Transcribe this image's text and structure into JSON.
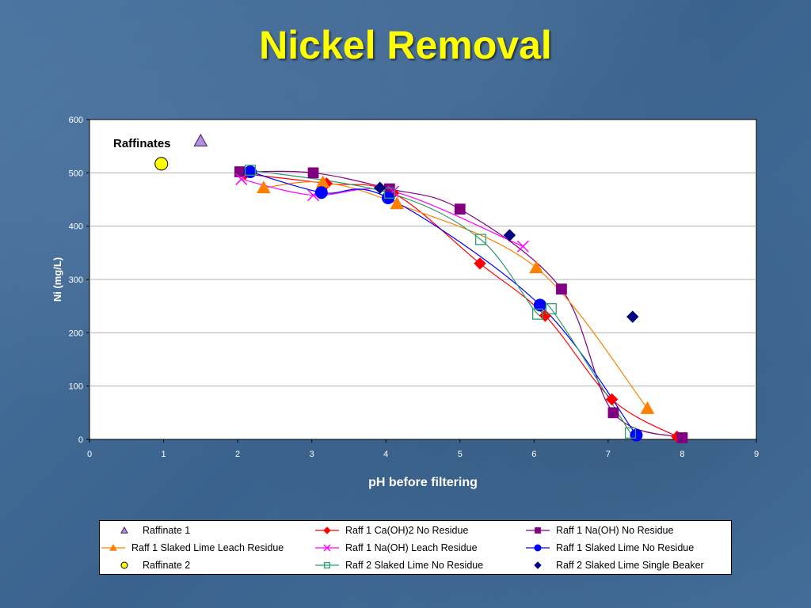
{
  "slide": {
    "title": "Nickel Removal"
  },
  "chart_data": {
    "type": "scatter",
    "xlabel": "pH before filtering",
    "ylabel": "Ni (mg/L)",
    "xlim": [
      0,
      9
    ],
    "ylim": [
      0,
      600
    ],
    "x_ticks": [
      "0",
      "1",
      "2",
      "3",
      "4",
      "5",
      "6",
      "7",
      "8",
      "9"
    ],
    "y_ticks": [
      "0",
      "100",
      "200",
      "300",
      "400",
      "500",
      "600"
    ],
    "grid": "horizontal",
    "legend_position": "bottom",
    "annotations": [
      {
        "text": "Raffinates"
      }
    ],
    "series": [
      {
        "name": "Raffinate 1",
        "marker": "triangle",
        "color": "#b48ee0",
        "stroke": "#3a1a66",
        "line": false,
        "points": [
          [
            1.5,
            560
          ]
        ]
      },
      {
        "name": "Raff 1 Ca(OH)2 No Residue",
        "marker": "diamond",
        "color": "#ff0000",
        "line": true,
        "points": [
          [
            2.1,
            498
          ],
          [
            3.2,
            480
          ],
          [
            4.1,
            462
          ],
          [
            5.27,
            330
          ],
          [
            6.15,
            232
          ],
          [
            7.05,
            75
          ],
          [
            7.93,
            5
          ]
        ]
      },
      {
        "name": "Raff 1 Na(OH) No Residue",
        "marker": "square",
        "color": "#800080",
        "line": true,
        "points": [
          [
            2.03,
            502
          ],
          [
            3.02,
            500
          ],
          [
            4.05,
            470
          ],
          [
            5.0,
            432
          ],
          [
            6.37,
            282
          ],
          [
            7.07,
            50
          ],
          [
            8.0,
            3
          ]
        ]
      },
      {
        "name": "Raff 1 Slaked Lime Leach Residue",
        "marker": "triangle",
        "color": "#ff7f00",
        "line": true,
        "points": [
          [
            2.35,
            472
          ],
          [
            3.15,
            482
          ],
          [
            4.15,
            442
          ],
          [
            6.03,
            322
          ],
          [
            7.53,
            58
          ]
        ]
      },
      {
        "name": "Raff 1 Na(OH) Leach Residue",
        "marker": "x",
        "color": "#ff00ff",
        "line": true,
        "points": [
          [
            2.05,
            488
          ],
          [
            3.02,
            458
          ],
          [
            4.1,
            465
          ],
          [
            5.85,
            362
          ]
        ]
      },
      {
        "name": "Raff 1 Slaked Lime No Residue",
        "marker": "circle",
        "color": "#0000ff",
        "line": true,
        "points": [
          [
            2.17,
            502
          ],
          [
            3.13,
            463
          ],
          [
            4.03,
            453
          ],
          [
            6.08,
            252
          ],
          [
            7.38,
            8
          ]
        ]
      },
      {
        "name": "Raffinate 2",
        "marker": "circle",
        "color": "#ffff00",
        "stroke": "#000000",
        "line": false,
        "points": [
          [
            0.97,
            517
          ]
        ]
      },
      {
        "name": "Raff 2 Slaked Lime No Residue",
        "marker": "open-square",
        "color": "#2e9e6a",
        "line": true,
        "points": [
          [
            2.17,
            505
          ],
          [
            4.05,
            462
          ],
          [
            5.28,
            375
          ],
          [
            6.05,
            235
          ],
          [
            6.23,
            245
          ],
          [
            7.3,
            12
          ]
        ]
      },
      {
        "name": "Raff 2 Slaked Lime Single Beaker",
        "marker": "diamond",
        "color": "#000080",
        "line": false,
        "points": [
          [
            3.92,
            472
          ],
          [
            5.67,
            383
          ],
          [
            7.33,
            230
          ]
        ]
      }
    ]
  },
  "legend": {
    "items": [
      "Raffinate 1",
      "Raff 1 Ca(OH)2 No Residue",
      "Raff 1 Na(OH) No Residue",
      "Raff 1 Slaked Lime Leach Residue",
      "Raff 1 Na(OH) Leach Residue",
      "Raff 1 Slaked Lime No Residue",
      "Raffinate 2",
      "Raff 2 Slaked Lime No Residue",
      "Raff 2 Slaked Lime Single Beaker"
    ]
  }
}
